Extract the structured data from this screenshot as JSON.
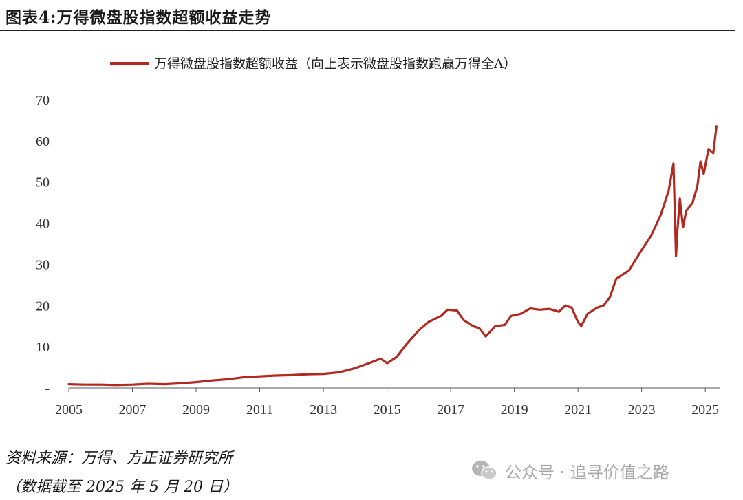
{
  "header": {
    "title": "图表4:万得微盘股指数超额收益走势"
  },
  "chart_data": {
    "type": "line",
    "title": "",
    "xlabel": "",
    "ylabel": "",
    "ylim": [
      0,
      70
    ],
    "yticks": [
      "-",
      "10",
      "20",
      "30",
      "40",
      "50",
      "60",
      "70"
    ],
    "xticks": [
      "2005",
      "2007",
      "2009",
      "2011",
      "2013",
      "2015",
      "2017",
      "2019",
      "2021",
      "2023",
      "2025"
    ],
    "grid": false,
    "legend_position": "top",
    "series": [
      {
        "name": "万得微盘股指数超额收益（向上表示微盘股指数跑赢万得全A）",
        "color": "#b22a1f",
        "points": [
          [
            2005.0,
            0.9
          ],
          [
            2005.5,
            0.8
          ],
          [
            2006.0,
            0.8
          ],
          [
            2006.5,
            0.7
          ],
          [
            2007.0,
            0.8
          ],
          [
            2007.5,
            1.0
          ],
          [
            2008.0,
            0.9
          ],
          [
            2008.5,
            1.1
          ],
          [
            2009.0,
            1.4
          ],
          [
            2009.5,
            1.8
          ],
          [
            2010.0,
            2.1
          ],
          [
            2010.5,
            2.6
          ],
          [
            2011.0,
            2.8
          ],
          [
            2011.5,
            3.0
          ],
          [
            2012.0,
            3.1
          ],
          [
            2012.5,
            3.3
          ],
          [
            2013.0,
            3.4
          ],
          [
            2013.5,
            3.8
          ],
          [
            2014.0,
            4.8
          ],
          [
            2014.5,
            6.2
          ],
          [
            2014.8,
            7.1
          ],
          [
            2015.0,
            6.0
          ],
          [
            2015.3,
            7.5
          ],
          [
            2015.6,
            10.5
          ],
          [
            2016.0,
            14.0
          ],
          [
            2016.3,
            16.0
          ],
          [
            2016.7,
            17.5
          ],
          [
            2016.9,
            19.0
          ],
          [
            2017.2,
            18.8
          ],
          [
            2017.4,
            16.5
          ],
          [
            2017.7,
            15.0
          ],
          [
            2017.9,
            14.5
          ],
          [
            2018.1,
            12.5
          ],
          [
            2018.4,
            15.0
          ],
          [
            2018.7,
            15.3
          ],
          [
            2018.9,
            17.5
          ],
          [
            2019.2,
            18.0
          ],
          [
            2019.5,
            19.3
          ],
          [
            2019.8,
            19.0
          ],
          [
            2020.1,
            19.2
          ],
          [
            2020.4,
            18.5
          ],
          [
            2020.6,
            20.0
          ],
          [
            2020.8,
            19.5
          ],
          [
            2021.0,
            16.0
          ],
          [
            2021.1,
            15.0
          ],
          [
            2021.3,
            18.0
          ],
          [
            2021.6,
            19.5
          ],
          [
            2021.8,
            20.0
          ],
          [
            2022.0,
            22.0
          ],
          [
            2022.2,
            26.5
          ],
          [
            2022.4,
            27.5
          ],
          [
            2022.6,
            28.5
          ],
          [
            2022.8,
            31.0
          ],
          [
            2023.0,
            33.5
          ],
          [
            2023.3,
            37.0
          ],
          [
            2023.6,
            42.0
          ],
          [
            2023.85,
            48.0
          ],
          [
            2024.0,
            54.5
          ],
          [
            2024.08,
            32.0
          ],
          [
            2024.12,
            38.0
          ],
          [
            2024.2,
            46.0
          ],
          [
            2024.3,
            39.0
          ],
          [
            2024.4,
            43.0
          ],
          [
            2024.6,
            45.0
          ],
          [
            2024.75,
            49.0
          ],
          [
            2024.85,
            55.0
          ],
          [
            2024.95,
            52.0
          ],
          [
            2025.1,
            58.0
          ],
          [
            2025.25,
            57.0
          ],
          [
            2025.35,
            63.5
          ]
        ]
      }
    ]
  },
  "footer": {
    "source": "资料来源：万得、方正证券研究所",
    "date_note": "（数据截至 2025 年 5 月 20 日）"
  },
  "watermark": {
    "text": "公众号 · 追寻价值之路",
    "icon": "wechat-icon"
  }
}
